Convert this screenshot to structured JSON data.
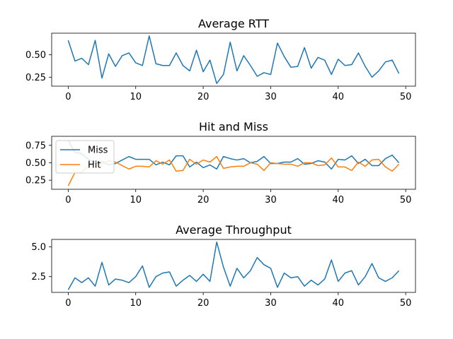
{
  "chart_data": [
    {
      "type": "line",
      "title": "Average RTT",
      "xlabel": "",
      "ylabel": "",
      "xlim": [
        -2.45,
        51.45
      ],
      "ylim": [
        0.15,
        0.74
      ],
      "xticks": [
        0,
        10,
        20,
        30,
        40,
        50
      ],
      "xtick_labels": [
        "0",
        "10",
        "20",
        "30",
        "40",
        "50"
      ],
      "yticks": [
        0.25,
        0.5
      ],
      "ytick_labels": [
        "0.25",
        "0.50"
      ],
      "grid": false,
      "legend": null,
      "series": [
        {
          "color": "#1f77b4",
          "x": [
            0,
            1,
            2,
            3,
            4,
            5,
            6,
            7,
            8,
            9,
            10,
            11,
            12,
            13,
            14,
            15,
            16,
            17,
            18,
            19,
            20,
            21,
            22,
            23,
            24,
            25,
            26,
            27,
            28,
            29,
            30,
            31,
            32,
            33,
            34,
            35,
            36,
            37,
            38,
            39,
            40,
            41,
            42,
            43,
            44,
            45,
            46,
            47,
            48,
            49
          ],
          "y": [
            0.66,
            0.43,
            0.46,
            0.39,
            0.66,
            0.24,
            0.51,
            0.37,
            0.49,
            0.52,
            0.41,
            0.38,
            0.71,
            0.4,
            0.38,
            0.38,
            0.52,
            0.38,
            0.32,
            0.55,
            0.31,
            0.44,
            0.18,
            0.28,
            0.64,
            0.32,
            0.49,
            0.38,
            0.26,
            0.3,
            0.28,
            0.63,
            0.48,
            0.36,
            0.37,
            0.58,
            0.35,
            0.47,
            0.44,
            0.28,
            0.45,
            0.38,
            0.39,
            0.52,
            0.37,
            0.25,
            0.32,
            0.42,
            0.44,
            0.29
          ]
        }
      ]
    },
    {
      "type": "line",
      "title": "Hit and Miss",
      "xlabel": "",
      "ylabel": "",
      "xlim": [
        -2.45,
        51.45
      ],
      "ylim": [
        0.12,
        0.88
      ],
      "xticks": [
        0,
        10,
        20,
        30,
        40,
        50
      ],
      "xtick_labels": [
        "0",
        "10",
        "20",
        "30",
        "40",
        "50"
      ],
      "yticks": [
        0.25,
        0.5,
        0.75
      ],
      "ytick_labels": [
        "0.25",
        "0.50",
        "0.75"
      ],
      "grid": false,
      "legend": "upper-left",
      "series": [
        {
          "name": "Miss",
          "color": "#1f77b4",
          "x": [
            0,
            1,
            2,
            3,
            4,
            5,
            6,
            7,
            8,
            9,
            10,
            11,
            12,
            13,
            14,
            15,
            16,
            17,
            18,
            19,
            20,
            21,
            22,
            23,
            24,
            25,
            26,
            27,
            28,
            29,
            30,
            31,
            32,
            33,
            34,
            35,
            36,
            37,
            38,
            39,
            40,
            41,
            42,
            43,
            44,
            45,
            46,
            47,
            48,
            49
          ],
          "y": [
            0.82,
            0.65,
            0.63,
            0.55,
            0.5,
            0.52,
            0.47,
            0.49,
            0.54,
            0.59,
            0.55,
            0.55,
            0.55,
            0.47,
            0.51,
            0.47,
            0.6,
            0.6,
            0.44,
            0.51,
            0.43,
            0.47,
            0.41,
            0.59,
            0.56,
            0.54,
            0.56,
            0.5,
            0.52,
            0.59,
            0.49,
            0.49,
            0.51,
            0.51,
            0.56,
            0.48,
            0.49,
            0.53,
            0.51,
            0.41,
            0.55,
            0.54,
            0.6,
            0.49,
            0.55,
            0.46,
            0.46,
            0.56,
            0.61,
            0.5
          ]
        },
        {
          "name": "Hit",
          "color": "#ff7f0e",
          "x": [
            0,
            1,
            2,
            3,
            4,
            5,
            6,
            7,
            8,
            9,
            10,
            11,
            12,
            13,
            14,
            15,
            16,
            17,
            18,
            19,
            20,
            21,
            22,
            23,
            24,
            25,
            26,
            27,
            28,
            29,
            30,
            31,
            32,
            33,
            34,
            35,
            36,
            37,
            38,
            39,
            40,
            41,
            42,
            43,
            44,
            45,
            46,
            47,
            48,
            49
          ],
          "y": [
            0.17,
            0.36,
            0.36,
            0.46,
            0.5,
            0.48,
            0.53,
            0.51,
            0.46,
            0.41,
            0.45,
            0.45,
            0.44,
            0.53,
            0.48,
            0.54,
            0.38,
            0.39,
            0.55,
            0.48,
            0.54,
            0.51,
            0.59,
            0.42,
            0.44,
            0.45,
            0.45,
            0.5,
            0.48,
            0.39,
            0.5,
            0.49,
            0.48,
            0.48,
            0.45,
            0.5,
            0.5,
            0.46,
            0.47,
            0.57,
            0.44,
            0.44,
            0.39,
            0.51,
            0.45,
            0.54,
            0.55,
            0.44,
            0.38,
            0.48
          ]
        }
      ]
    },
    {
      "type": "line",
      "title": "Average Throughput",
      "xlabel": "",
      "ylabel": "",
      "xlim": [
        -2.45,
        51.45
      ],
      "ylim": [
        1.18,
        5.62
      ],
      "xticks": [
        0,
        10,
        20,
        30,
        40,
        50
      ],
      "xtick_labels": [
        "0",
        "10",
        "20",
        "30",
        "40",
        "50"
      ],
      "yticks": [
        2.5,
        5.0
      ],
      "ytick_labels": [
        "2.5",
        "5.0"
      ],
      "grid": false,
      "legend": null,
      "series": [
        {
          "color": "#1f77b4",
          "x": [
            0,
            1,
            2,
            3,
            4,
            5,
            6,
            7,
            8,
            9,
            10,
            11,
            12,
            13,
            14,
            15,
            16,
            17,
            18,
            19,
            20,
            21,
            22,
            23,
            24,
            25,
            26,
            27,
            28,
            29,
            30,
            31,
            32,
            33,
            34,
            35,
            36,
            37,
            38,
            39,
            40,
            41,
            42,
            43,
            44,
            45,
            46,
            47,
            48,
            49
          ],
          "y": [
            1.4,
            2.4,
            2.0,
            2.4,
            1.7,
            3.7,
            1.8,
            2.3,
            2.2,
            2.0,
            2.5,
            3.4,
            1.6,
            2.5,
            2.8,
            2.9,
            1.7,
            2.2,
            2.6,
            2.1,
            2.7,
            2.1,
            5.4,
            3.3,
            1.7,
            3.2,
            2.4,
            3.0,
            4.1,
            3.5,
            3.2,
            1.6,
            2.8,
            2.4,
            2.5,
            1.7,
            2.2,
            1.8,
            2.3,
            3.9,
            2.1,
            2.8,
            3.0,
            1.8,
            2.5,
            3.6,
            2.4,
            2.1,
            2.4,
            3.0
          ]
        }
      ]
    }
  ]
}
